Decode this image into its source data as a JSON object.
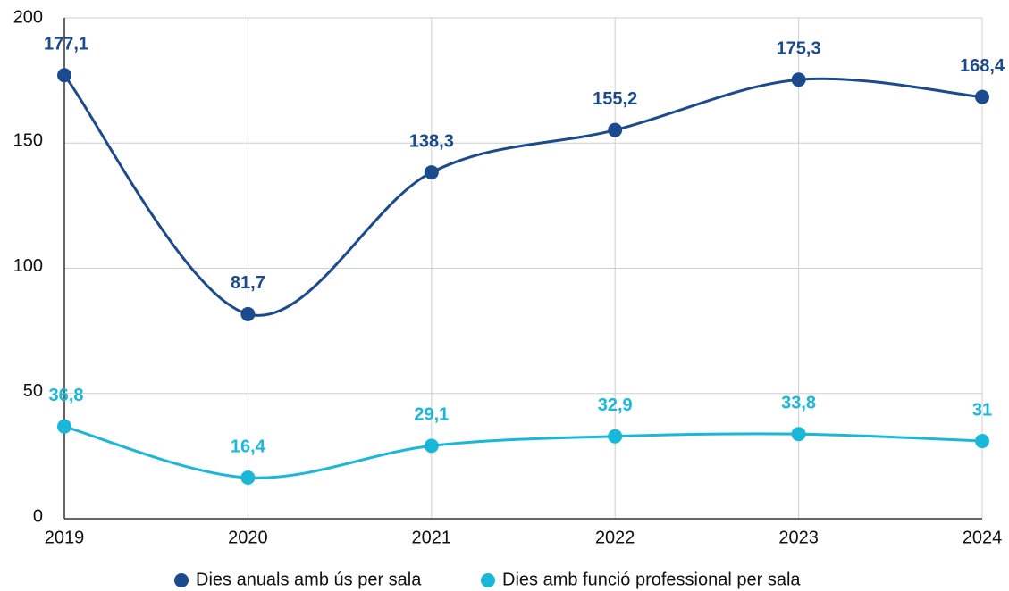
{
  "chart_data": {
    "type": "line",
    "categories": [
      "2019",
      "2020",
      "2021",
      "2022",
      "2023",
      "2024"
    ],
    "series": [
      {
        "name": "Dies anuals amb ús per sala",
        "color": "#1b4a8f",
        "values": [
          177.1,
          81.7,
          138.3,
          155.2,
          175.3,
          168.4
        ],
        "value_labels": [
          "177,1",
          "81,7",
          "138,3",
          "155,2",
          "175,3",
          "168,4"
        ]
      },
      {
        "name": "Dies amb funció professional per sala",
        "color": "#1ab8d8",
        "values": [
          36.8,
          16.4,
          29.1,
          32.9,
          33.8,
          31
        ],
        "value_labels": [
          "36,8",
          "16,4",
          "29,1",
          "32,9",
          "33,8",
          "31"
        ]
      }
    ],
    "ylim": [
      0,
      200
    ],
    "yticks": [
      0,
      50,
      100,
      150,
      200
    ],
    "grid": true,
    "legend": "bottom"
  }
}
